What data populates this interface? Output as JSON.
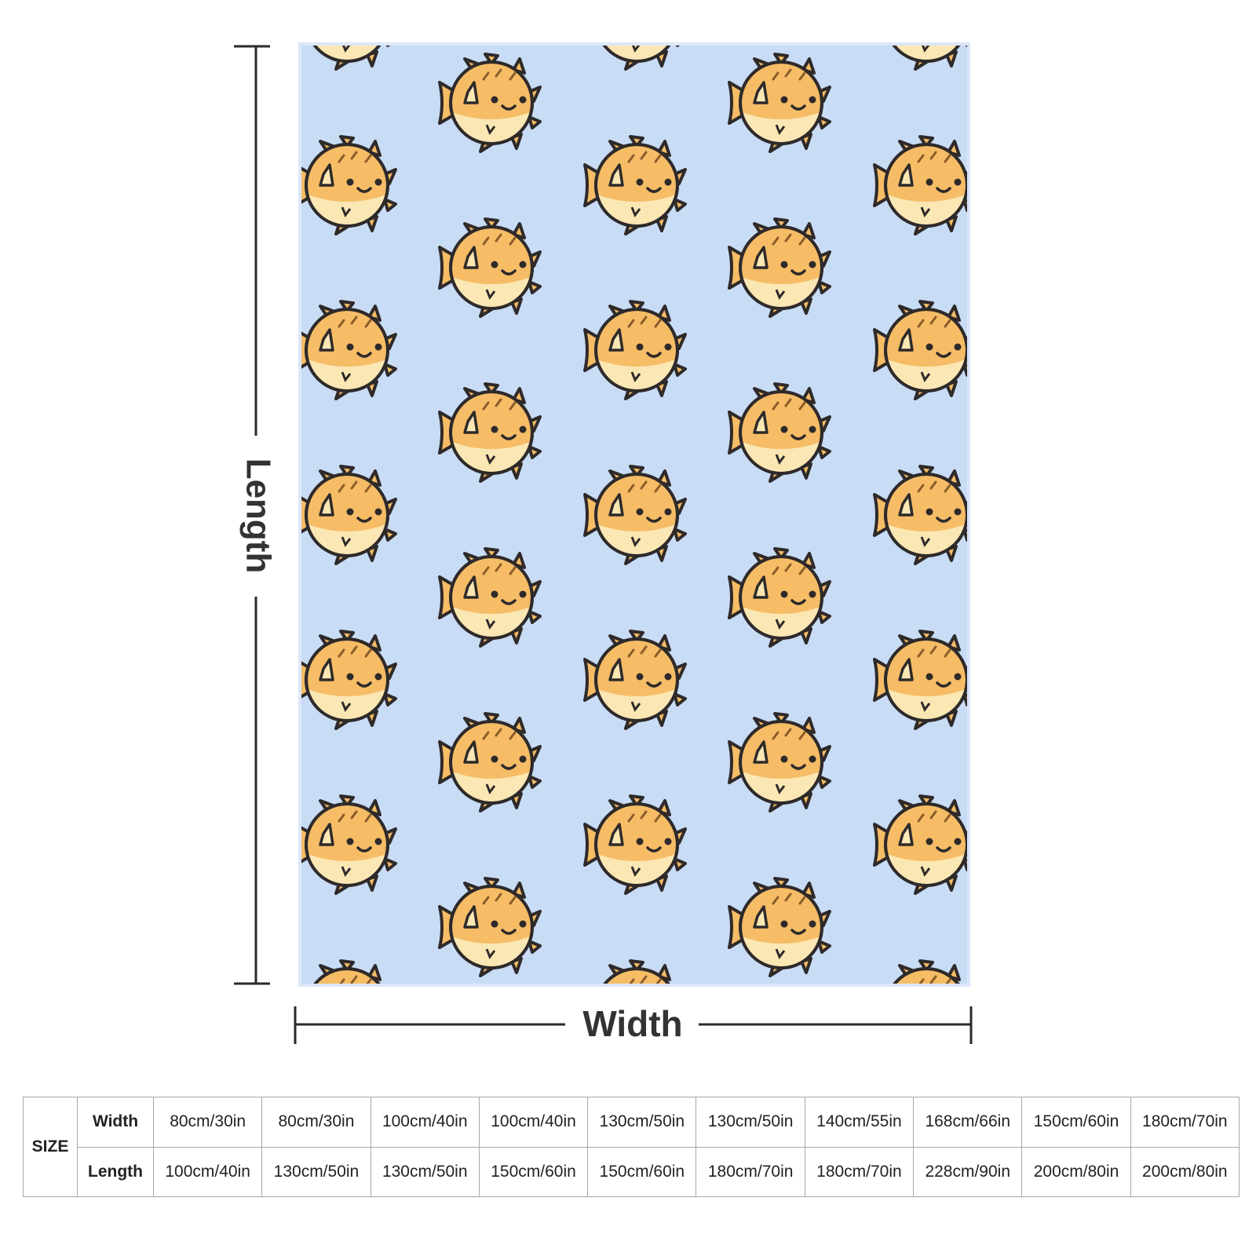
{
  "labels": {
    "length": "Length",
    "width": "Width"
  },
  "table": {
    "size_label": "SIZE",
    "row_headers": [
      "Width",
      "Length"
    ],
    "rows": [
      [
        "80cm/30in",
        "80cm/30in",
        "100cm/40in",
        "100cm/40in",
        "130cm/50in",
        "130cm/50in",
        "140cm/55in",
        "168cm/66in",
        "150cm/60in",
        "180cm/70in"
      ],
      [
        "100cm/40in",
        "130cm/50in",
        "130cm/50in",
        "150cm/60in",
        "150cm/60in",
        "180cm/70in",
        "180cm/70in",
        "228cm/90in",
        "200cm/80in",
        "200cm/80in"
      ]
    ]
  }
}
